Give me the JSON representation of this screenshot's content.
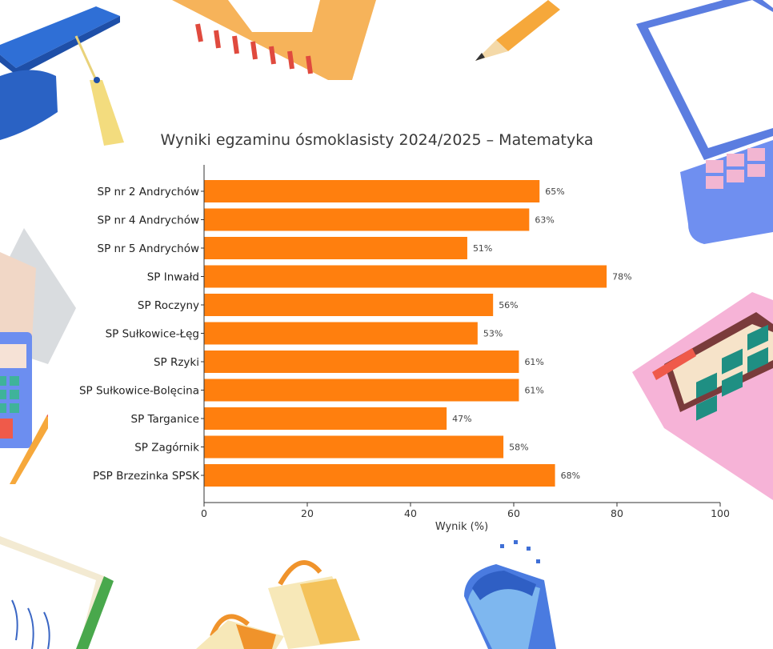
{
  "chart_data": {
    "type": "bar",
    "orientation": "horizontal",
    "title": "Wyniki egzaminu ósmoklasisty 2024/2025 – Matematyka",
    "xlabel": "Wynik (%)",
    "ylabel": "",
    "xlim": [
      0,
      100
    ],
    "xticks": [
      "0",
      "20",
      "40",
      "60",
      "80",
      "100"
    ],
    "grid": false,
    "bar_color": "#ff7f0e",
    "categories": [
      "SP nr 2 Andrychów",
      "SP nr 4 Andrychów",
      "SP nr 5 Andrychów",
      "SP Inwałd",
      "SP Roczyny",
      "SP Sułkowice-Łęg",
      "SP Rzyki",
      "SP Sułkowice-Bolęcina",
      "SP Targanice",
      "SP Zagórnik",
      "PSP Brzezinka SPSK"
    ],
    "values": [
      65,
      63,
      51,
      78,
      56,
      53,
      61,
      61,
      47,
      58,
      68
    ],
    "value_labels": [
      "65%",
      "63%",
      "51%",
      "78%",
      "56%",
      "53%",
      "61%",
      "61%",
      "47%",
      "58%",
      "68%"
    ]
  },
  "decorations": [
    {
      "name": "graduation-cap-icon"
    },
    {
      "name": "set-square-ruler-icon"
    },
    {
      "name": "pencil-icon"
    },
    {
      "name": "laptop-icon"
    },
    {
      "name": "paper-sheets-icon"
    },
    {
      "name": "calculator-icon"
    },
    {
      "name": "notebook-icon"
    },
    {
      "name": "binder-clips-icon"
    },
    {
      "name": "eraser-icon"
    }
  ]
}
